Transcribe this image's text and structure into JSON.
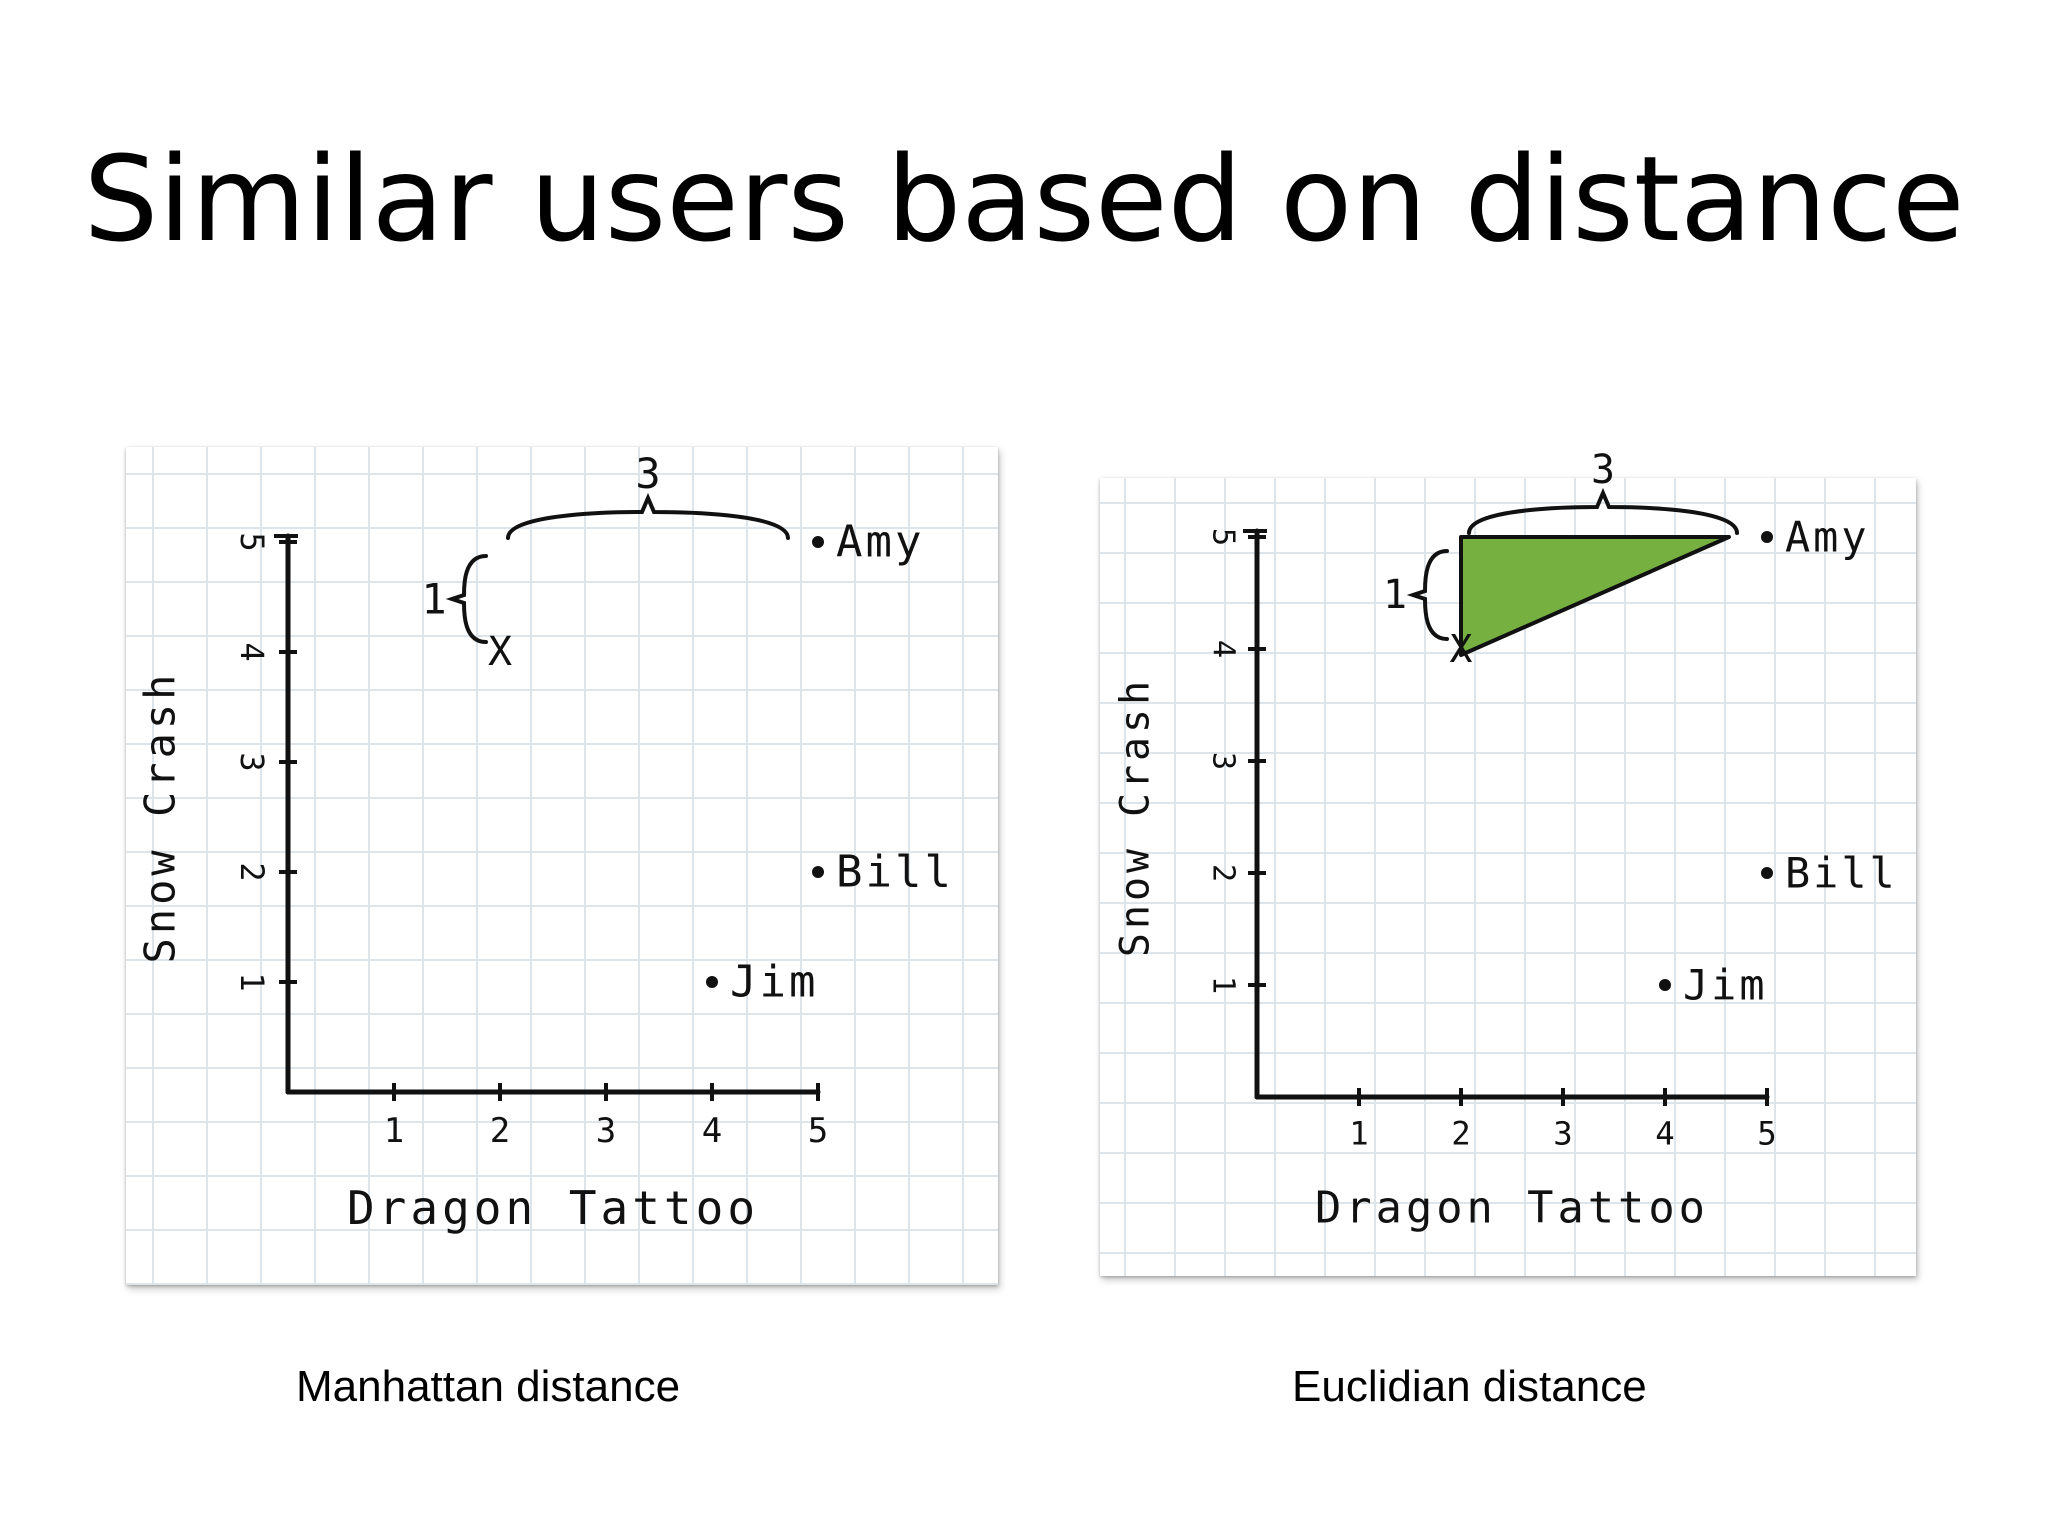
{
  "title": "Similar users based on distance",
  "chart_data": [
    {
      "type": "scatter",
      "caption": "Manhattan distance",
      "xlabel": "Dragon Tattoo",
      "ylabel": "Snow Crash",
      "xlim": [
        0,
        5
      ],
      "ylim": [
        0,
        5
      ],
      "x_ticks": [
        "1",
        "2",
        "3",
        "4",
        "5"
      ],
      "y_ticks": [
        "1",
        "2",
        "3",
        "4",
        "5"
      ],
      "grid": true,
      "points": [
        {
          "label": "Amy",
          "x": 5,
          "y": 5
        },
        {
          "label": "Bill",
          "x": 5,
          "y": 2
        },
        {
          "label": "Jim",
          "x": 4,
          "y": 1
        },
        {
          "label": "X",
          "x": 2,
          "y": 4
        }
      ],
      "annotations": [
        {
          "text": "3",
          "type": "horizontal-brace"
        },
        {
          "text": "1",
          "type": "vertical-brace"
        }
      ],
      "highlight_triangle": false
    },
    {
      "type": "scatter",
      "caption": "Euclidian distance",
      "xlabel": "Dragon Tattoo",
      "ylabel": "Snow Crash",
      "xlim": [
        0,
        5
      ],
      "ylim": [
        0,
        5
      ],
      "x_ticks": [
        "1",
        "2",
        "3",
        "4",
        "5"
      ],
      "y_ticks": [
        "1",
        "2",
        "3",
        "4",
        "5"
      ],
      "grid": true,
      "points": [
        {
          "label": "Amy",
          "x": 5,
          "y": 5
        },
        {
          "label": "Bill",
          "x": 5,
          "y": 2
        },
        {
          "label": "Jim",
          "x": 4,
          "y": 1
        },
        {
          "label": "X",
          "x": 2,
          "y": 4
        }
      ],
      "annotations": [
        {
          "text": "3",
          "type": "horizontal-brace"
        },
        {
          "text": "1",
          "type": "vertical-brace"
        }
      ],
      "highlight_triangle": true,
      "highlight_color": "#76b041"
    }
  ]
}
